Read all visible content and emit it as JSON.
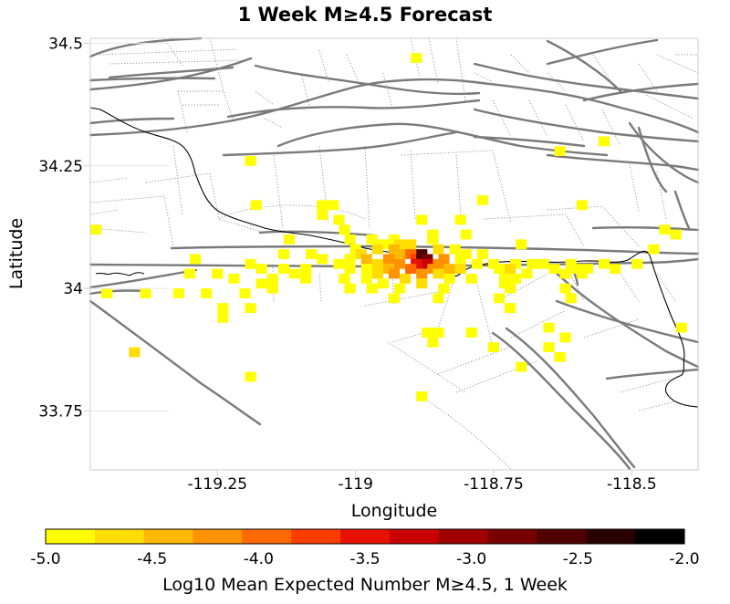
{
  "chart_data": {
    "type": "heatmap",
    "title": "1 Week M≥4.5 Forecast",
    "xlabel": "Longitude",
    "ylabel": "Latitude",
    "xlim": [
      -119.48,
      -118.38
    ],
    "ylim": [
      33.63,
      34.51
    ],
    "x_ticks": [
      -119.25,
      -119,
      -118.75,
      -118.5
    ],
    "x_tick_labels": [
      "-119.25",
      "-119",
      "-118.75",
      "-118.5"
    ],
    "y_ticks": [
      34.5,
      34.25,
      34,
      33.75
    ],
    "y_tick_labels": [
      "34.5",
      "34.25",
      "34",
      "33.75"
    ],
    "cell_size_deg": 0.02,
    "colorbar": {
      "label": "Log10 Mean Expected Number M≥4.5, 1 Week",
      "min": -5.0,
      "max": -2.0,
      "ticks": [
        -5.0,
        -4.5,
        -4.0,
        -3.5,
        -3.0,
        -2.5,
        -2.0
      ],
      "tick_labels": [
        "-5.0",
        "-4.5",
        "-4.0",
        "-3.5",
        "-3.0",
        "-2.5",
        "-2.0"
      ],
      "colors": [
        "#ffff00",
        "#ffdd00",
        "#ffb800",
        "#ff9200",
        "#ff6a00",
        "#ff3d00",
        "#e81000",
        "#c80000",
        "#a00000",
        "#780000",
        "#500000",
        "#280000",
        "#000000"
      ]
    },
    "cells": [
      [
        -119.47,
        34.12,
        -4.9
      ],
      [
        -119.29,
        34.06,
        -4.9
      ],
      [
        -119.3,
        34.03,
        -4.9
      ],
      [
        -119.38,
        33.99,
        -4.8
      ],
      [
        -119.45,
        33.99,
        -4.9
      ],
      [
        -119.4,
        33.87,
        -4.7
      ],
      [
        -119.32,
        33.99,
        -4.8
      ],
      [
        -119.27,
        33.99,
        -4.8
      ],
      [
        -119.25,
        34.03,
        -4.9
      ],
      [
        -119.22,
        34.02,
        -4.9
      ],
      [
        -119.19,
        34.05,
        -4.9
      ],
      [
        -119.17,
        34.04,
        -4.9
      ],
      [
        -119.15,
        34.02,
        -4.9
      ],
      [
        -119.17,
        34.01,
        -4.9
      ],
      [
        -119.13,
        34.07,
        -4.8
      ],
      [
        -119.13,
        34.04,
        -4.9
      ],
      [
        -119.15,
        34.0,
        -4.9
      ],
      [
        -119.2,
        33.99,
        -4.8
      ],
      [
        -119.19,
        33.96,
        -4.9
      ],
      [
        -119.24,
        33.96,
        -4.8
      ],
      [
        -119.24,
        33.94,
        -4.9
      ],
      [
        -119.18,
        34.17,
        -4.9
      ],
      [
        -119.19,
        34.26,
        -4.9
      ],
      [
        -119.19,
        33.82,
        -4.9
      ],
      [
        -118.88,
        33.78,
        -4.9
      ],
      [
        -118.89,
        34.47,
        -4.9
      ],
      [
        -119.12,
        34.1,
        -4.9
      ],
      [
        -119.08,
        34.07,
        -4.9
      ],
      [
        -119.06,
        34.06,
        -4.9
      ],
      [
        -119.09,
        34.04,
        -4.9
      ],
      [
        -119.11,
        34.03,
        -4.9
      ],
      [
        -119.09,
        34.02,
        -4.9
      ],
      [
        -119.06,
        34.17,
        -4.9
      ],
      [
        -119.04,
        34.17,
        -4.9
      ],
      [
        -119.06,
        34.15,
        -4.9
      ],
      [
        -119.03,
        34.14,
        -4.9
      ],
      [
        -119.02,
        34.12,
        -4.9
      ],
      [
        -119.01,
        34.1,
        -4.9
      ],
      [
        -119.0,
        34.08,
        -4.8
      ],
      [
        -118.99,
        34.07,
        -4.7
      ],
      [
        -119.01,
        34.06,
        -4.9
      ],
      [
        -119.03,
        34.05,
        -4.9
      ],
      [
        -119.01,
        34.04,
        -4.8
      ],
      [
        -119.02,
        34.02,
        -4.9
      ],
      [
        -119.01,
        34.0,
        -4.9
      ],
      [
        -118.97,
        34.1,
        -4.8
      ],
      [
        -118.95,
        34.09,
        -4.8
      ],
      [
        -118.96,
        34.08,
        -4.6
      ],
      [
        -118.98,
        34.06,
        -4.5
      ],
      [
        -118.96,
        34.05,
        -4.6
      ],
      [
        -118.98,
        34.04,
        -4.8
      ],
      [
        -118.96,
        34.03,
        -4.7
      ],
      [
        -118.98,
        34.02,
        -4.9
      ],
      [
        -118.95,
        34.01,
        -4.9
      ],
      [
        -118.97,
        34.0,
        -4.9
      ],
      [
        -118.93,
        34.1,
        -4.9
      ],
      [
        -118.92,
        34.09,
        -4.7
      ],
      [
        -118.93,
        34.08,
        -4.5
      ],
      [
        -118.92,
        34.07,
        -4.4
      ],
      [
        -118.94,
        34.06,
        -4.2
      ],
      [
        -118.92,
        34.05,
        -4.3
      ],
      [
        -118.94,
        34.04,
        -4.4
      ],
      [
        -118.93,
        34.03,
        -4.2
      ],
      [
        -118.91,
        34.02,
        -4.7
      ],
      [
        -118.92,
        34.0,
        -4.8
      ],
      [
        -118.93,
        33.98,
        -4.9
      ],
      [
        -118.9,
        34.09,
        -4.6
      ],
      [
        -118.9,
        34.07,
        -4.0
      ],
      [
        -118.89,
        34.06,
        -3.8
      ],
      [
        -118.88,
        34.07,
        -2.6
      ],
      [
        -118.87,
        34.06,
        -2.9
      ],
      [
        -118.89,
        34.05,
        -3.5
      ],
      [
        -118.87,
        34.05,
        -3.3
      ],
      [
        -118.9,
        34.04,
        -4.0
      ],
      [
        -118.88,
        34.03,
        -4.3
      ],
      [
        -118.86,
        34.04,
        -4.1
      ],
      [
        -118.88,
        34.01,
        -4.7
      ],
      [
        -118.85,
        34.08,
        -4.6
      ],
      [
        -118.84,
        34.06,
        -4.2
      ],
      [
        -118.85,
        34.05,
        -4.3
      ],
      [
        -118.83,
        34.04,
        -4.5
      ],
      [
        -118.85,
        34.03,
        -4.6
      ],
      [
        -118.83,
        34.02,
        -4.8
      ],
      [
        -118.84,
        34.0,
        -4.9
      ],
      [
        -118.85,
        33.98,
        -4.9
      ],
      [
        -118.86,
        34.1,
        -4.9
      ],
      [
        -118.82,
        34.08,
        -4.9
      ],
      [
        -118.81,
        34.06,
        -4.8
      ],
      [
        -118.8,
        34.07,
        -4.9
      ],
      [
        -118.81,
        34.04,
        -4.7
      ],
      [
        -118.79,
        34.02,
        -4.8
      ],
      [
        -118.78,
        34.05,
        -4.9
      ],
      [
        -118.8,
        34.11,
        -4.9
      ],
      [
        -118.77,
        34.07,
        -4.9
      ],
      [
        -118.88,
        34.14,
        -4.9
      ],
      [
        -118.86,
        34.11,
        -4.9
      ],
      [
        -118.81,
        34.14,
        -4.9
      ],
      [
        -118.77,
        34.18,
        -4.9
      ],
      [
        -118.87,
        33.91,
        -4.9
      ],
      [
        -118.85,
        33.91,
        -4.9
      ],
      [
        -118.86,
        33.89,
        -4.9
      ],
      [
        -118.79,
        33.91,
        -4.9
      ],
      [
        -118.75,
        33.88,
        -4.9
      ],
      [
        -118.75,
        34.05,
        -4.9
      ],
      [
        -118.74,
        34.04,
        -4.8
      ],
      [
        -118.73,
        34.03,
        -4.9
      ],
      [
        -118.71,
        34.05,
        -4.8
      ],
      [
        -118.72,
        34.04,
        -4.7
      ],
      [
        -118.71,
        34.02,
        -4.9
      ],
      [
        -118.73,
        34.01,
        -4.9
      ],
      [
        -118.72,
        34.0,
        -4.9
      ],
      [
        -118.74,
        33.98,
        -4.9
      ],
      [
        -118.72,
        33.96,
        -4.9
      ],
      [
        -118.68,
        34.05,
        -4.9
      ],
      [
        -118.69,
        34.03,
        -4.8
      ],
      [
        -118.7,
        34.09,
        -4.9
      ],
      [
        -118.7,
        33.84,
        -4.9
      ],
      [
        -118.66,
        34.05,
        -4.9
      ],
      [
        -118.64,
        34.04,
        -4.8
      ],
      [
        -118.61,
        34.05,
        -4.9
      ],
      [
        -118.62,
        34.03,
        -4.8
      ],
      [
        -118.6,
        34.04,
        -4.9
      ],
      [
        -118.59,
        34.03,
        -4.8
      ],
      [
        -118.62,
        34.0,
        -4.9
      ],
      [
        -118.61,
        33.98,
        -4.9
      ],
      [
        -118.65,
        33.88,
        -4.9
      ],
      [
        -118.65,
        33.92,
        -4.9
      ],
      [
        -118.63,
        33.86,
        -4.9
      ],
      [
        -118.62,
        33.9,
        -4.9
      ],
      [
        -118.59,
        34.17,
        -4.9
      ],
      [
        -118.58,
        34.04,
        -4.8
      ],
      [
        -118.55,
        34.05,
        -4.9
      ],
      [
        -118.53,
        34.04,
        -4.9
      ],
      [
        -118.49,
        34.05,
        -4.9
      ],
      [
        -118.46,
        34.08,
        -4.9
      ],
      [
        -118.44,
        34.12,
        -4.9
      ],
      [
        -118.42,
        34.11,
        -4.9
      ],
      [
        -118.41,
        33.92,
        -4.9
      ],
      [
        -118.63,
        34.28,
        -4.9
      ],
      [
        -118.55,
        34.3,
        -4.9
      ]
    ]
  }
}
